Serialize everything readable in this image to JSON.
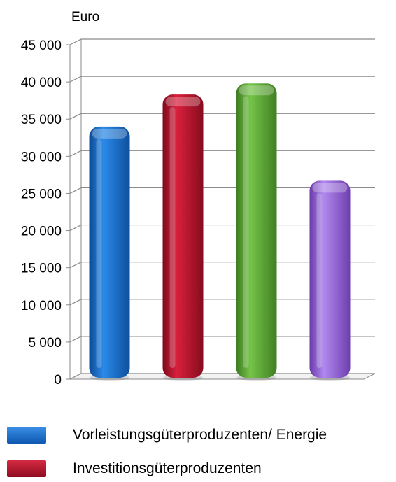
{
  "chart_data": {
    "type": "bar",
    "title": "",
    "xlabel": "",
    "ylabel": "Euro",
    "ylim": [
      0,
      45000
    ],
    "yticks": [
      0,
      5000,
      10000,
      15000,
      20000,
      25000,
      30000,
      35000,
      40000,
      45000
    ],
    "ytick_labels": [
      "0",
      "5 000",
      "10 000",
      "15 000",
      "20 000",
      "25 000",
      "30 000",
      "35 000",
      "40 000",
      "45 000"
    ],
    "grid": true,
    "legend_position": "bottom",
    "categories": [
      "Vorleistungsgüterproduzenten/ Energie",
      "Investitionsgüterproduzenten",
      "",
      ""
    ],
    "values": [
      34000,
      38300,
      39800,
      26700
    ],
    "colors": [
      "#1a6fc9",
      "#b8102a",
      "#5ca832",
      "#9461d8"
    ],
    "legend": [
      {
        "label": "Vorleistungsgüterproduzenten/ Energie",
        "color": "#1a6fc9"
      },
      {
        "label": "Investitionsgüterproduzenten",
        "color": "#b8102a"
      }
    ]
  }
}
